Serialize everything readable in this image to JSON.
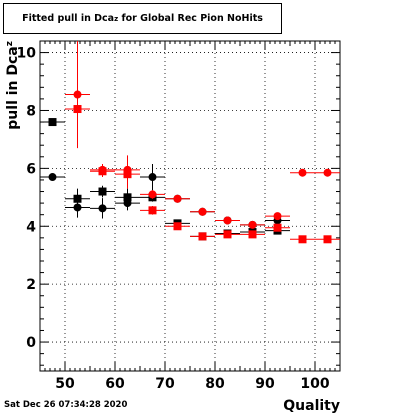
{
  "chart_data": {
    "type": "scatter",
    "title_parts": [
      "Fitted pull in Dca",
      "z",
      " for Global Rec Pion NoHits"
    ],
    "ylabel_parts": [
      "pull in Dca",
      "z"
    ],
    "xlabel": "Quality",
    "xlim": [
      45,
      105
    ],
    "ylim": [
      -1,
      10.4
    ],
    "x_ticks": [
      50,
      60,
      70,
      80,
      90,
      100
    ],
    "y_ticks": [
      0,
      2,
      4,
      6,
      8,
      10
    ],
    "grid": true,
    "series": [
      {
        "color": "#000000",
        "marker": "square",
        "points": [
          {
            "x": 47.5,
            "y": 7.6,
            "yerr": 0.1
          },
          {
            "x": 52.5,
            "y": 4.95,
            "yerr": 0.35
          },
          {
            "x": 57.5,
            "y": 5.2,
            "yerr": 0.2
          },
          {
            "x": 62.5,
            "y": 5.0,
            "yerr": 0.3
          },
          {
            "x": 67.5,
            "y": 5.0,
            "yerr": 0.15
          },
          {
            "x": 72.5,
            "y": 4.1,
            "yerr": 0.1
          },
          {
            "x": 77.5,
            "y": 3.65,
            "yerr": 0.05
          },
          {
            "x": 82.5,
            "y": 3.75,
            "yerr": 0.05
          },
          {
            "x": 87.5,
            "y": 3.8,
            "yerr": 0.05
          },
          {
            "x": 92.5,
            "y": 3.85,
            "yerr": 0.05
          }
        ]
      },
      {
        "color": "#000000",
        "marker": "circle",
        "points": [
          {
            "x": 47.5,
            "y": 5.7,
            "yerr": 0.1
          },
          {
            "x": 52.5,
            "y": 4.65,
            "yerr": 0.35
          },
          {
            "x": 57.5,
            "y": 4.62,
            "yerr": 0.35
          },
          {
            "x": 62.5,
            "y": 4.8,
            "yerr": 0.25
          },
          {
            "x": 67.5,
            "y": 5.7,
            "yerr": 0.45
          },
          {
            "x": 72.5,
            "y": 4.95,
            "yerr": 0.1
          },
          {
            "x": 77.5,
            "y": 4.5,
            "yerr": 0.05
          },
          {
            "x": 82.5,
            "y": 4.2,
            "yerr": 0.05
          },
          {
            "x": 87.5,
            "y": 4.05,
            "yerr": 0.05
          },
          {
            "x": 92.5,
            "y": 4.2,
            "yerr": 0.05
          }
        ]
      },
      {
        "color": "#ff0000",
        "marker": "circle",
        "points": [
          {
            "x": 52.5,
            "y": 8.55,
            "yerr": 1.85
          },
          {
            "x": 57.5,
            "y": 5.95,
            "yerr": 0.2
          },
          {
            "x": 62.5,
            "y": 5.95,
            "yerr": 0.5
          },
          {
            "x": 67.5,
            "y": 5.1,
            "yerr": 0.15
          },
          {
            "x": 72.5,
            "y": 4.95,
            "yerr": 0.1
          },
          {
            "x": 77.5,
            "y": 4.5,
            "yerr": 0.05
          },
          {
            "x": 82.5,
            "y": 4.2,
            "yerr": 0.05
          },
          {
            "x": 87.5,
            "y": 4.05,
            "yerr": 0.05
          },
          {
            "x": 92.5,
            "y": 4.35,
            "yerr": 0.05
          },
          {
            "x": 97.5,
            "y": 5.85,
            "yerr": 0.05
          },
          {
            "x": 102.5,
            "y": 5.85,
            "yerr": 0.05
          }
        ]
      },
      {
        "color": "#ff0000",
        "marker": "square",
        "points": [
          {
            "x": 52.5,
            "y": 8.05,
            "yerr": 0.1
          },
          {
            "x": 57.5,
            "y": 5.9,
            "yerr": 0.2
          },
          {
            "x": 62.5,
            "y": 5.8,
            "yerr": 0.5
          },
          {
            "x": 67.5,
            "y": 4.55,
            "yerr": 0.15
          },
          {
            "x": 72.5,
            "y": 4.0,
            "yerr": 0.1
          },
          {
            "x": 77.5,
            "y": 3.65,
            "yerr": 0.05
          },
          {
            "x": 82.5,
            "y": 3.72,
            "yerr": 0.05
          },
          {
            "x": 87.5,
            "y": 3.72,
            "yerr": 0.05
          },
          {
            "x": 92.5,
            "y": 3.95,
            "yerr": 0.05
          },
          {
            "x": 97.5,
            "y": 3.55,
            "yerr": 0.05
          },
          {
            "x": 102.5,
            "y": 3.55,
            "yerr": 0.05
          }
        ]
      }
    ]
  },
  "footer": {
    "timestamp": "Sat Dec 26 07:34:28 2020"
  }
}
